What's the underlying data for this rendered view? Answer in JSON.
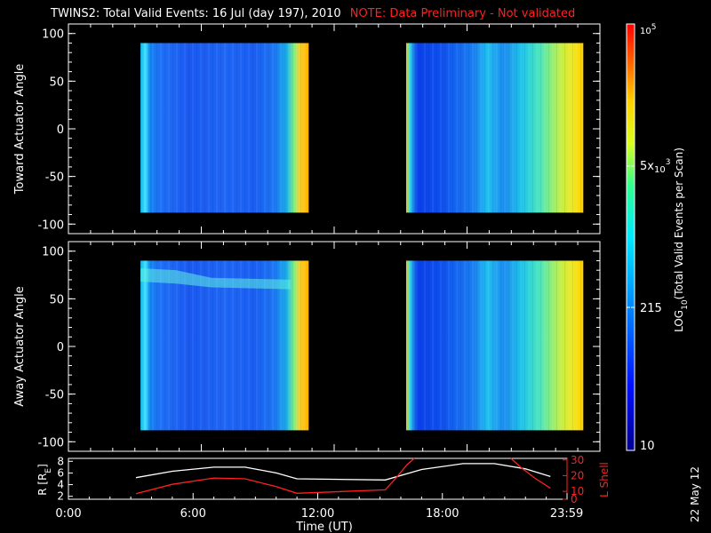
{
  "header": {
    "title": "TWINS2: Total Valid Events: 16 Jul (day 197), 2010",
    "note": "NOTE: Data Preliminary - Not validated"
  },
  "date_stamp": "22 May 12",
  "chart_data": [
    {
      "type": "heatmap",
      "ylabel": "Toward Actuator Angle",
      "ylim": [
        -110,
        110
      ],
      "yticks": [
        "100",
        "50",
        "0",
        "-50",
        "-100"
      ],
      "x_unit": "hours UT",
      "data_blocks": [
        {
          "x_start": 3.25,
          "x_end": 10.85,
          "y_range": [
            -88,
            90
          ]
        },
        {
          "x_start": 15.25,
          "x_end": 23.25,
          "y_range": [
            -88,
            90
          ]
        }
      ]
    },
    {
      "type": "heatmap",
      "ylabel": "Away Actuator Angle",
      "ylim": [
        -110,
        110
      ],
      "yticks": [
        "100",
        "50",
        "0",
        "-50",
        "-100"
      ],
      "x_unit": "hours UT",
      "data_blocks": [
        {
          "x_start": 3.25,
          "x_end": 10.85,
          "y_range": [
            -88,
            90
          ]
        },
        {
          "x_start": 15.25,
          "x_end": 23.25,
          "y_range": [
            -88,
            90
          ]
        }
      ]
    },
    {
      "type": "line",
      "ylabel_left": "R [R",
      "ylabel_left_sub": "E",
      "ylabel_left_end": "]",
      "ylabel_right": "L Shell",
      "xlabel": "Time (UT)",
      "xticks": [
        "0:00",
        "6:00",
        "12:00",
        "18:00",
        "23:59"
      ],
      "ylim_left": [
        1.5,
        8.5
      ],
      "yticks_left": [
        "8",
        "6",
        "4",
        "2"
      ],
      "ylim_right": [
        5,
        31
      ],
      "yticks_right": [
        "30",
        "20",
        "10",
        "0"
      ],
      "series": [
        {
          "color": "#ffffff",
          "x": [
            3.25,
            5.0,
            7.0,
            8.5,
            10.0,
            11.0,
            15.25,
            17.0,
            19.0,
            20.5,
            22.0,
            23.2
          ],
          "y": [
            5.2,
            6.3,
            7.0,
            7.0,
            6.0,
            5.0,
            4.8,
            6.6,
            7.6,
            7.6,
            6.7,
            5.4
          ]
        },
        {
          "color": "#ff2020",
          "x": [
            3.25,
            5.0,
            7.0,
            8.5,
            10.0,
            11.0,
            15.25,
            15.8,
            16.3,
            16.65
          ],
          "y": [
            8.5,
            14.5,
            18.5,
            18.0,
            13.0,
            8.8,
            11.0,
            19.0,
            27.0,
            31.0
          ]
        },
        {
          "color": "#ff2020",
          "x": [
            21.3,
            21.8,
            22.5,
            23.2
          ],
          "y": [
            31.0,
            25.0,
            18.0,
            12.0
          ]
        }
      ]
    }
  ],
  "colorbar": {
    "label": "LOG",
    "label_sub": "10",
    "label_end": "(Total Valid Events per Scan)",
    "tick_10": "10",
    "tick_215": "215",
    "tick_5e3_base": "5x",
    "tick_5e3_pow": "10",
    "tick_5e3_exp": "3",
    "tick_1e5_base": "10",
    "tick_1e5_exp": "5"
  }
}
